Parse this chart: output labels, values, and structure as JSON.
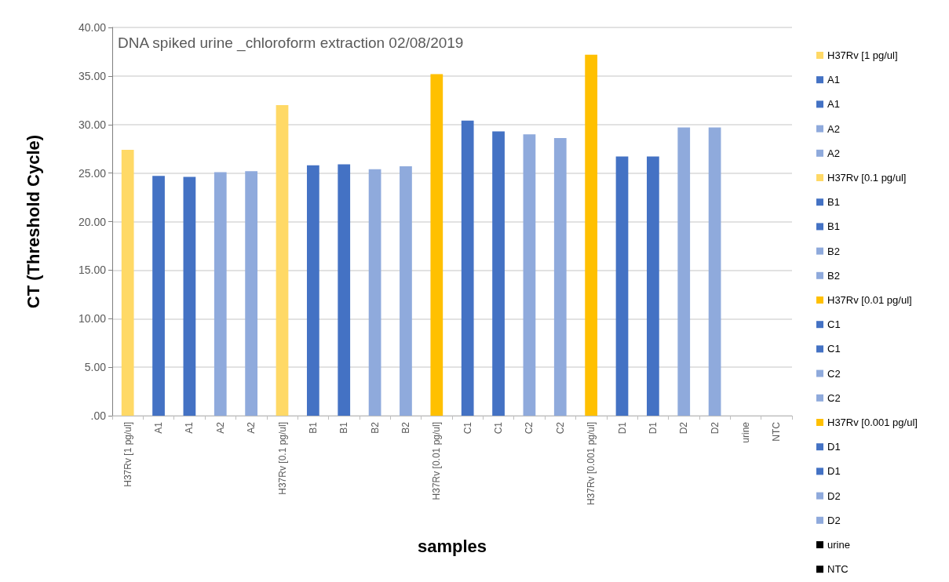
{
  "chart_data": {
    "type": "bar",
    "title": "DNA spiked urine _chloroform extraction 02/08/2019",
    "xlabel": "samples",
    "ylabel": "CT (Threshold Cycle)",
    "categories": [
      "H37Rv [1 pg/ul]",
      "A1",
      "A1",
      "A2",
      "A2",
      "H37Rv [0.1 pg/ul]",
      "B1",
      "B1",
      "B2",
      "B2",
      "H37Rv [0.01 pg/ul]",
      "C1",
      "C1",
      "C2",
      "C2",
      "H37Rv [0.001 pg/ul]",
      "D1",
      "D1",
      "D2",
      "D2",
      "urine",
      "NTC"
    ],
    "series": [
      {
        "name": "H37Rv [1 pg/ul]",
        "color": "#ffd966",
        "values": [
          27.4,
          null,
          null,
          null,
          null,
          null,
          null,
          null,
          null,
          null,
          null,
          null,
          null,
          null,
          null,
          null,
          null,
          null,
          null,
          null,
          null,
          null
        ]
      },
      {
        "name": "A1",
        "color": "#4472c4",
        "values": [
          null,
          24.7,
          null,
          null,
          null,
          null,
          null,
          null,
          null,
          null,
          null,
          null,
          null,
          null,
          null,
          null,
          null,
          null,
          null,
          null,
          null,
          null
        ]
      },
      {
        "name": "A1",
        "color": "#4472c4",
        "values": [
          null,
          null,
          24.6,
          null,
          null,
          null,
          null,
          null,
          null,
          null,
          null,
          null,
          null,
          null,
          null,
          null,
          null,
          null,
          null,
          null,
          null,
          null
        ]
      },
      {
        "name": "A2",
        "color": "#8faadc",
        "values": [
          null,
          null,
          null,
          25.1,
          null,
          null,
          null,
          null,
          null,
          null,
          null,
          null,
          null,
          null,
          null,
          null,
          null,
          null,
          null,
          null,
          null,
          null
        ]
      },
      {
        "name": "A2",
        "color": "#8faadc",
        "values": [
          null,
          null,
          null,
          null,
          25.2,
          null,
          null,
          null,
          null,
          null,
          null,
          null,
          null,
          null,
          null,
          null,
          null,
          null,
          null,
          null,
          null,
          null
        ]
      },
      {
        "name": "H37Rv [0.1 pg/ul]",
        "color": "#ffd966",
        "values": [
          null,
          null,
          null,
          null,
          null,
          32.0,
          null,
          null,
          null,
          null,
          null,
          null,
          null,
          null,
          null,
          null,
          null,
          null,
          null,
          null,
          null,
          null
        ]
      },
      {
        "name": "B1",
        "color": "#4472c4",
        "values": [
          null,
          null,
          null,
          null,
          null,
          null,
          25.8,
          null,
          null,
          null,
          null,
          null,
          null,
          null,
          null,
          null,
          null,
          null,
          null,
          null,
          null,
          null
        ]
      },
      {
        "name": "B1",
        "color": "#4472c4",
        "values": [
          null,
          null,
          null,
          null,
          null,
          null,
          null,
          25.9,
          null,
          null,
          null,
          null,
          null,
          null,
          null,
          null,
          null,
          null,
          null,
          null,
          null,
          null
        ]
      },
      {
        "name": "B2",
        "color": "#8faadc",
        "values": [
          null,
          null,
          null,
          null,
          null,
          null,
          null,
          null,
          25.4,
          null,
          null,
          null,
          null,
          null,
          null,
          null,
          null,
          null,
          null,
          null,
          null,
          null
        ]
      },
      {
        "name": "B2",
        "color": "#8faadc",
        "values": [
          null,
          null,
          null,
          null,
          null,
          null,
          null,
          null,
          null,
          25.7,
          null,
          null,
          null,
          null,
          null,
          null,
          null,
          null,
          null,
          null,
          null,
          null
        ]
      },
      {
        "name": "H37Rv [0.01 pg/ul]",
        "color": "#ffc000",
        "values": [
          null,
          null,
          null,
          null,
          null,
          null,
          null,
          null,
          null,
          null,
          35.2,
          null,
          null,
          null,
          null,
          null,
          null,
          null,
          null,
          null,
          null,
          null
        ]
      },
      {
        "name": "C1",
        "color": "#4472c4",
        "values": [
          null,
          null,
          null,
          null,
          null,
          null,
          null,
          null,
          null,
          null,
          null,
          30.4,
          null,
          null,
          null,
          null,
          null,
          null,
          null,
          null,
          null,
          null
        ]
      },
      {
        "name": "C1",
        "color": "#4472c4",
        "values": [
          null,
          null,
          null,
          null,
          null,
          null,
          null,
          null,
          null,
          null,
          null,
          null,
          29.3,
          null,
          null,
          null,
          null,
          null,
          null,
          null,
          null,
          null
        ]
      },
      {
        "name": "C2",
        "color": "#8faadc",
        "values": [
          null,
          null,
          null,
          null,
          null,
          null,
          null,
          null,
          null,
          null,
          null,
          null,
          null,
          29.0,
          null,
          null,
          null,
          null,
          null,
          null,
          null,
          null
        ]
      },
      {
        "name": "C2",
        "color": "#8faadc",
        "values": [
          null,
          null,
          null,
          null,
          null,
          null,
          null,
          null,
          null,
          null,
          null,
          null,
          null,
          null,
          28.6,
          null,
          null,
          null,
          null,
          null,
          null,
          null
        ]
      },
      {
        "name": "H37Rv [0.001 pg/ul]",
        "color": "#ffc000",
        "values": [
          null,
          null,
          null,
          null,
          null,
          null,
          null,
          null,
          null,
          null,
          null,
          null,
          null,
          null,
          null,
          37.2,
          null,
          null,
          null,
          null,
          null,
          null
        ]
      },
      {
        "name": "D1",
        "color": "#4472c4",
        "values": [
          null,
          null,
          null,
          null,
          null,
          null,
          null,
          null,
          null,
          null,
          null,
          null,
          null,
          null,
          null,
          null,
          26.7,
          null,
          null,
          null,
          null,
          null
        ]
      },
      {
        "name": "D1",
        "color": "#4472c4",
        "values": [
          null,
          null,
          null,
          null,
          null,
          null,
          null,
          null,
          null,
          null,
          null,
          null,
          null,
          null,
          null,
          null,
          null,
          26.7,
          null,
          null,
          null,
          null
        ]
      },
      {
        "name": "D2",
        "color": "#8faadc",
        "values": [
          null,
          null,
          null,
          null,
          null,
          null,
          null,
          null,
          null,
          null,
          null,
          null,
          null,
          null,
          null,
          null,
          null,
          null,
          29.7,
          null,
          null,
          null
        ]
      },
      {
        "name": "D2",
        "color": "#8faadc",
        "values": [
          null,
          null,
          null,
          null,
          null,
          null,
          null,
          null,
          null,
          null,
          null,
          null,
          null,
          null,
          null,
          null,
          null,
          null,
          null,
          29.7,
          null,
          null
        ]
      },
      {
        "name": "urine",
        "color": "#000000",
        "values": [
          null,
          null,
          null,
          null,
          null,
          null,
          null,
          null,
          null,
          null,
          null,
          null,
          null,
          null,
          null,
          null,
          null,
          null,
          null,
          null,
          null,
          null
        ]
      },
      {
        "name": "NTC",
        "color": "#000000",
        "values": [
          null,
          null,
          null,
          null,
          null,
          null,
          null,
          null,
          null,
          null,
          null,
          null,
          null,
          null,
          null,
          null,
          null,
          null,
          null,
          null,
          null,
          null
        ]
      }
    ],
    "ylim": [
      0,
      40
    ],
    "yticks": [
      {
        "value": 0,
        "label": ".00"
      },
      {
        "value": 5,
        "label": "5.00"
      },
      {
        "value": 10,
        "label": "10.00"
      },
      {
        "value": 15,
        "label": "15.00"
      },
      {
        "value": 20,
        "label": "20.00"
      },
      {
        "value": 25,
        "label": "25.00"
      },
      {
        "value": 30,
        "label": "30.00"
      },
      {
        "value": 35,
        "label": "35.00"
      },
      {
        "value": 40,
        "label": "40.00"
      }
    ],
    "grid": "y",
    "legend": "right"
  }
}
